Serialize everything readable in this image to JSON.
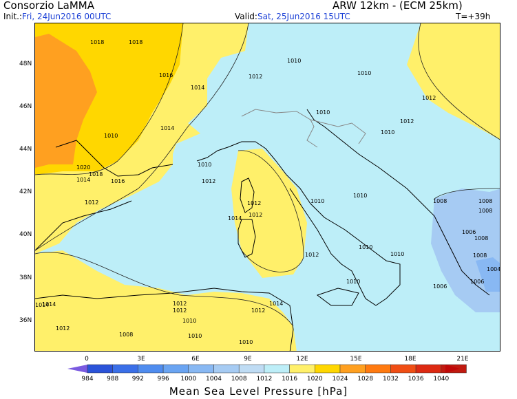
{
  "header": {
    "org": "Consorzio LaMMA",
    "model": "ARW 12km - (ECM 25km)",
    "init_label": "Init.:",
    "init_value": "Fri, 24Jun2016 00UTC",
    "valid_label": "Valid:",
    "valid_value": "Sat, 25Jun2016 15UTC",
    "forecast_step": "T=+39h"
  },
  "map": {
    "lat_labels": [
      "48N",
      "46N",
      "44N",
      "42N",
      "40N",
      "38N",
      "36N"
    ],
    "lon_labels": [
      "0",
      "3E",
      "6E",
      "9E",
      "12E",
      "15E",
      "18E",
      "21E"
    ],
    "isobars": [
      "1018",
      "1018",
      "1016",
      "1014",
      "1012",
      "1010",
      "1010",
      "1014",
      "1010",
      "1012",
      "1010",
      "1012",
      "1020",
      "1018",
      "1014",
      "1016",
      "1012",
      "1012",
      "1014",
      "1012",
      "1010",
      "1010",
      "1010",
      "1012",
      "1008",
      "1008",
      "1008",
      "1006",
      "1008",
      "1008",
      "1006",
      "1006",
      "1004",
      "1010",
      "1010",
      "1012",
      "1010",
      "1014",
      "1012",
      "1014",
      "1012",
      "1010",
      "1012",
      "1008",
      "1010",
      "1010",
      "1014",
      "1012",
      "1010"
    ]
  },
  "colorbar": {
    "values": [
      "984",
      "988",
      "992",
      "996",
      "1000",
      "1004",
      "1008",
      "1012",
      "1016",
      "1020",
      "1024",
      "1028",
      "1032",
      "1036",
      "1040"
    ],
    "colors": [
      "#2b53d9",
      "#3a6fe8",
      "#4f8cef",
      "#6aa4f2",
      "#88b8f3",
      "#a6cbf3",
      "#bfdcf4",
      "#bdeef8",
      "#fff06a",
      "#ffd700",
      "#ffa020",
      "#ff7a10",
      "#f04e14",
      "#dd2a12",
      "#c01a10"
    ],
    "low_arrow_color": "#7a5ae0",
    "high_arrow_color": "#c00808"
  },
  "title": "Mean Sea Level Pressure [hPa]"
}
